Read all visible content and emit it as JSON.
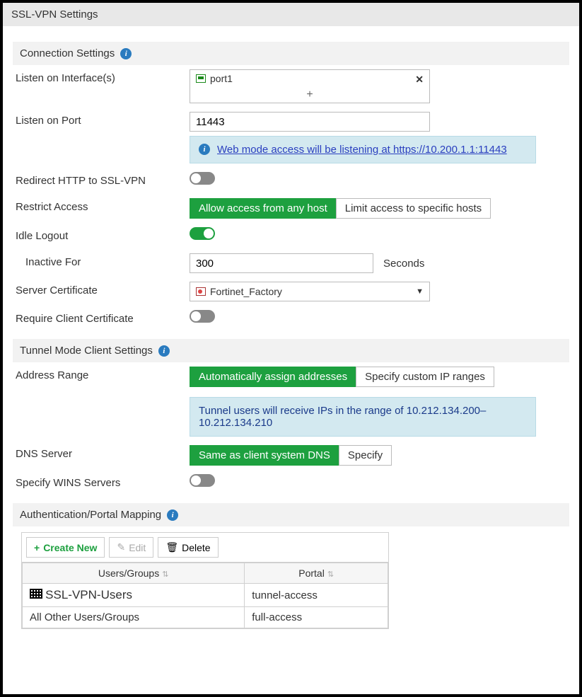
{
  "title": "SSL-VPN Settings",
  "sections": {
    "connection": "Connection Settings",
    "tunnel": "Tunnel Mode Client Settings",
    "auth": "Authentication/Portal Mapping"
  },
  "labels": {
    "listen_iface": "Listen on Interface(s)",
    "listen_port": "Listen on Port",
    "redirect_http": "Redirect HTTP to SSL-VPN",
    "restrict_access": "Restrict Access",
    "idle_logout": "Idle Logout",
    "inactive_for": "Inactive For",
    "server_cert": "Server Certificate",
    "require_client_cert": "Require Client Certificate",
    "address_range": "Address Range",
    "dns_server": "DNS Server",
    "wins": "Specify WINS Servers",
    "seconds": "Seconds"
  },
  "interfaces": {
    "item": "port1"
  },
  "port": "11443",
  "port_info_pre": "Web mode access will be listening at",
  "port_info_url": "https://10.200.1.1:11443",
  "restrict": {
    "allow": "Allow access from any host",
    "limit": "Limit access to specific hosts"
  },
  "inactive_value": "300",
  "cert_value": "Fortinet_Factory",
  "address_range_opts": {
    "auto": "Automatically assign addresses",
    "custom": "Specify custom IP ranges"
  },
  "tunnel_info": "Tunnel users will receive IPs in the range of 10.212.134.200–10.212.134.210",
  "dns_opts": {
    "same": "Same as client system DNS",
    "specify": "Specify"
  },
  "toolbar": {
    "create": "Create New",
    "edit": "Edit",
    "delete": "Delete"
  },
  "table": {
    "col_users": "Users/Groups",
    "col_portal": "Portal",
    "rows": [
      {
        "ug": "SSL-VPN-Users",
        "portal": "tunnel-access",
        "icon": true
      },
      {
        "ug": "All Other Users/Groups",
        "portal": "full-access",
        "icon": false
      }
    ]
  },
  "colors": {
    "accent_green": "#1da03f",
    "info_bg": "#d3e9f0",
    "link": "#2a3fbf"
  }
}
